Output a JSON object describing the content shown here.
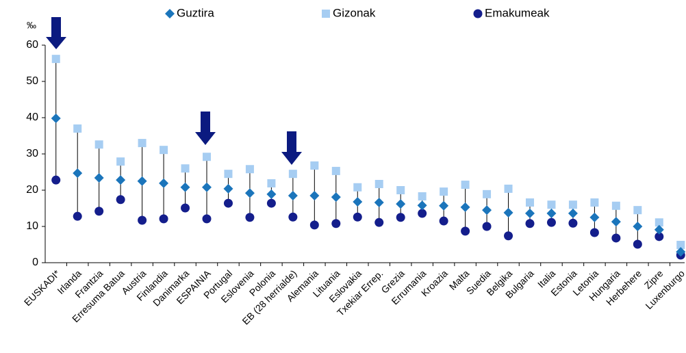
{
  "chart_data": {
    "type": "dot",
    "y_label": "‰",
    "categories": [
      "EUSKADI*",
      "Irlanda",
      "Frantzia",
      "Erresuma Batua",
      "Austria",
      "Finlandia",
      "Danimarka",
      "ESPAINIA",
      "Portugal",
      "Eslovenia",
      "Polonia",
      "EB (28 herrialde)",
      "Alemania",
      "Lituania",
      "Eslovakia",
      "Txekiar Errep.",
      "Grezia",
      "Errumania",
      "Kroazia",
      "Malta",
      "Suedia",
      "Belgika",
      "Bulgaria",
      "Italia",
      "Estonia",
      "Letonia",
      "Hungaria",
      "Herbehere",
      "Zipre",
      "Luxenburgo"
    ],
    "series": [
      {
        "name": "Guztira",
        "color": "#1b75bb",
        "marker": "diamond",
        "values": [
          39.8,
          24.7,
          23.4,
          22.8,
          22.5,
          21.9,
          20.8,
          20.8,
          20.4,
          19.2,
          18.9,
          18.5,
          18.5,
          18.1,
          16.8,
          16.6,
          16.2,
          15.8,
          15.7,
          15.3,
          14.5,
          13.8,
          13.6,
          13.6,
          13.6,
          12.5,
          11.3,
          10.0,
          9.1,
          3.0
        ]
      },
      {
        "name": "Gizonak",
        "color": "#a6cdf2",
        "marker": "square",
        "values": [
          56.2,
          37.0,
          32.6,
          27.9,
          33.0,
          31.1,
          26.0,
          29.2,
          24.5,
          25.8,
          21.9,
          24.5,
          26.8,
          25.3,
          20.8,
          21.7,
          20.0,
          18.3,
          19.6,
          21.5,
          18.9,
          20.4,
          16.6,
          16.0,
          16.0,
          16.6,
          15.7,
          14.5,
          11.1,
          4.9
        ]
      },
      {
        "name": "Emakumeak",
        "color": "#141e8c",
        "marker": "circle",
        "values": [
          22.8,
          12.8,
          14.2,
          17.4,
          11.7,
          12.1,
          15.1,
          12.1,
          16.4,
          12.5,
          16.4,
          12.6,
          10.4,
          10.8,
          12.6,
          11.1,
          12.5,
          13.6,
          11.5,
          8.7,
          10.0,
          7.4,
          10.8,
          11.1,
          10.9,
          8.3,
          6.8,
          5.1,
          7.2,
          2.1
        ]
      }
    ],
    "ylim": [
      0,
      60
    ],
    "yticks": [
      0,
      10,
      20,
      30,
      40,
      50,
      60
    ]
  }
}
